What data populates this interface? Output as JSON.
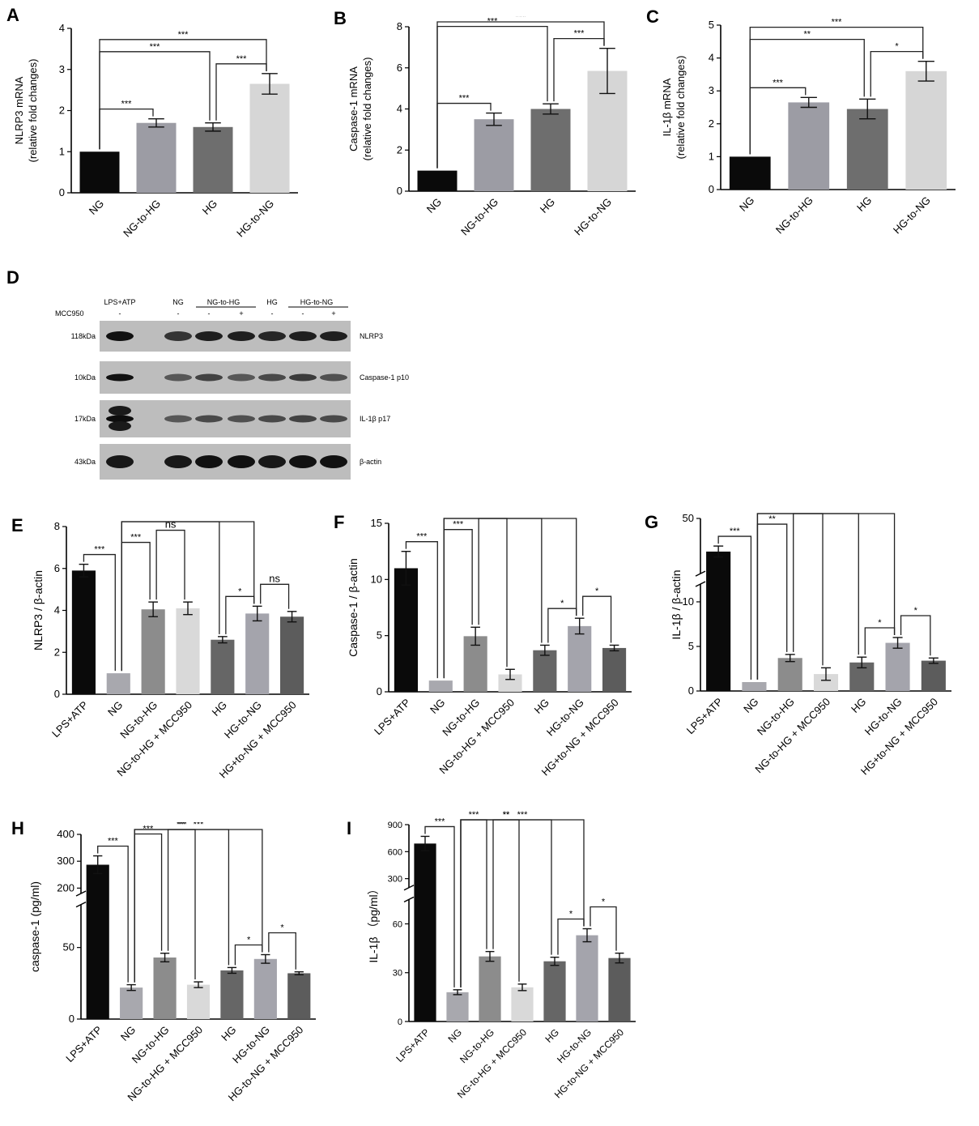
{
  "colors": {
    "NG": "#0a0a0a",
    "NG-to-HG": "#9c9ca4",
    "HG": "#6e6e6e",
    "HG-to-NG": "#d6d6d6",
    "LPS+ATP": "#0a0a0a",
    "NG_small": "#a8a8ae",
    "NG-to-HG_grey": "#8c8c8c",
    "MCC950_light": "#d9d9d9",
    "HG_dark": "#666666",
    "HG-to-NG_mid": "#a4a4ac",
    "HG-to-NG+MCC950": "#5c5c5c"
  },
  "panel_d": {
    "letter": "D",
    "header_treatments": [
      "LPS+ATP",
      "NG",
      "NG-to-HG",
      "HG",
      "HG-to-NG"
    ],
    "mcc950_label": "MCC950",
    "mcc950_signs": [
      "-",
      "-",
      "-",
      "+",
      "-",
      "-",
      "+"
    ],
    "bands": [
      {
        "kda": "118kDa",
        "name": "NLRP3"
      },
      {
        "kda": "10kDa",
        "name": "Caspase-1 p10"
      },
      {
        "kda": "17kDa",
        "name": "IL-1β p17"
      },
      {
        "kda": "43kDa",
        "name": "β-actin"
      }
    ]
  },
  "chart_data": [
    {
      "panel": "A",
      "type": "bar",
      "categories": [
        "NG",
        "NG-to-HG",
        "HG",
        "HG-to-NG"
      ],
      "values": [
        1.0,
        1.7,
        1.6,
        2.65
      ],
      "errors": [
        0,
        0.1,
        0.1,
        0.25
      ],
      "ylabel": "NLRP3 mRNA\n(relative fold changes)",
      "ylim": [
        0,
        4
      ],
      "yticks": [
        0,
        1,
        2,
        3,
        4
      ],
      "colors": [
        "NG",
        "NG-to-HG",
        "HG",
        "HG-to-NG"
      ],
      "significance": [
        {
          "from": 0,
          "to": 1,
          "label": "***"
        },
        {
          "from": 0,
          "to": 2,
          "label": "***"
        },
        {
          "from": 0,
          "to": 3,
          "label": "***"
        },
        {
          "from": 2,
          "to": 3,
          "label": "***"
        }
      ]
    },
    {
      "panel": "B",
      "type": "bar",
      "categories": [
        "NG",
        "NG-to-HG",
        "HG",
        "HG-to-NG"
      ],
      "values": [
        1.0,
        3.5,
        4.0,
        5.85
      ],
      "errors": [
        0,
        0.3,
        0.25,
        1.1
      ],
      "ylabel": "Caspase-1 mRNA\n(relative fold changes)",
      "ylim": [
        0,
        8
      ],
      "yticks": [
        0,
        2,
        4,
        6,
        8
      ],
      "colors": [
        "NG",
        "NG-to-HG",
        "HG",
        "HG-to-NG"
      ],
      "significance": [
        {
          "from": 0,
          "to": 1,
          "label": "***"
        },
        {
          "from": 0,
          "to": 2,
          "label": "***"
        },
        {
          "from": 0,
          "to": 3,
          "label": "***"
        },
        {
          "from": 2,
          "to": 3,
          "label": "***"
        }
      ]
    },
    {
      "panel": "C",
      "type": "bar",
      "categories": [
        "NG",
        "NG-to-HG",
        "HG",
        "HG-to-NG"
      ],
      "values": [
        1.0,
        2.65,
        2.45,
        3.6
      ],
      "errors": [
        0,
        0.15,
        0.3,
        0.3
      ],
      "ylabel": "IL-1β  mRNA\n(relative fold changes)",
      "ylim": [
        0,
        5
      ],
      "yticks": [
        0,
        1,
        2,
        3,
        4,
        5
      ],
      "colors": [
        "NG",
        "NG-to-HG",
        "HG",
        "HG-to-NG"
      ],
      "significance": [
        {
          "from": 0,
          "to": 1,
          "label": "***"
        },
        {
          "from": 0,
          "to": 2,
          "label": "**"
        },
        {
          "from": 0,
          "to": 3,
          "label": "***"
        },
        {
          "from": 2,
          "to": 3,
          "label": "*"
        }
      ]
    },
    {
      "panel": "E",
      "type": "bar",
      "categories": [
        "LPS+ATP",
        "NG",
        "NG-to-HG",
        "NG-to-HG + MCC950",
        "HG",
        "HG-to-NG",
        "HG+to-NG + MCC950"
      ],
      "values": [
        5.9,
        1.0,
        4.05,
        4.1,
        2.6,
        3.85,
        3.7
      ],
      "errors": [
        0.3,
        0,
        0.35,
        0.3,
        0.15,
        0.35,
        0.25
      ],
      "ylabel": "NLRP3 / β-actin",
      "ylim": [
        0,
        8
      ],
      "yticks": [
        0,
        2,
        4,
        6,
        8
      ],
      "colors": [
        "LPS+ATP",
        "NG_small",
        "NG-to-HG_grey",
        "MCC950_light",
        "HG_dark",
        "HG-to-NG_mid",
        "HG-to-NG+MCC950"
      ],
      "significance": [
        {
          "from": 0,
          "to": 1,
          "label": "***"
        },
        {
          "from": 1,
          "to": 5,
          "label": "***"
        },
        {
          "from": 1,
          "to": 4,
          "label": "**"
        },
        {
          "from": 1,
          "to": 2,
          "label": "***"
        },
        {
          "from": 2,
          "to": 3,
          "label": "ns"
        },
        {
          "from": 4,
          "to": 5,
          "label": "*"
        },
        {
          "from": 5,
          "to": 6,
          "label": "ns"
        }
      ]
    },
    {
      "panel": "F",
      "type": "bar",
      "categories": [
        "LPS+ATP",
        "NG",
        "NG-to-HG",
        "NG-to-HG + MCC950",
        "HG",
        "HG-to-NG",
        "HG+to-NG + MCC950"
      ],
      "values": [
        11.0,
        1.0,
        4.95,
        1.55,
        3.7,
        5.85,
        3.9
      ],
      "errors": [
        1.5,
        0,
        0.8,
        0.45,
        0.45,
        0.7,
        0.25
      ],
      "ylabel": "Caspase-1 / β-actin",
      "ylim": [
        0,
        15
      ],
      "yticks": [
        0,
        5,
        10,
        15
      ],
      "colors": [
        "LPS+ATP",
        "NG_small",
        "NG-to-HG_grey",
        "MCC950_light",
        "HG_dark",
        "HG-to-NG_mid",
        "HG-to-NG+MCC950"
      ],
      "significance": [
        {
          "from": 0,
          "to": 1,
          "label": "***"
        },
        {
          "from": 1,
          "to": 5,
          "label": "***"
        },
        {
          "from": 1,
          "to": 4,
          "label": "***"
        },
        {
          "from": 1,
          "to": 2,
          "label": "***"
        },
        {
          "from": 2,
          "to": 3,
          "label": "**"
        },
        {
          "from": 4,
          "to": 5,
          "label": "*"
        },
        {
          "from": 5,
          "to": 6,
          "label": "*"
        }
      ]
    },
    {
      "panel": "G",
      "type": "bar",
      "categories": [
        "LPS+ATP",
        "NG",
        "NG-to-HG",
        "NG-to-HG + MCC950",
        "HG",
        "HG-to-NG",
        "HG+to-NG + MCC950"
      ],
      "values": [
        38,
        1.0,
        3.7,
        1.9,
        3.2,
        5.4,
        3.4
      ],
      "errors": [
        2,
        0,
        0.4,
        0.7,
        0.6,
        0.6,
        0.3
      ],
      "ylabel": "IL-1β / β-actin",
      "ylim": [
        0,
        50
      ],
      "yticks": [
        0,
        5,
        10,
        50
      ],
      "axis_break": [
        12,
        30
      ],
      "colors": [
        "LPS+ATP",
        "NG_small",
        "NG-to-HG_grey",
        "MCC950_light",
        "HG_dark",
        "HG-to-NG_mid",
        "HG-to-NG+MCC950"
      ],
      "significance": [
        {
          "from": 0,
          "to": 1,
          "label": "***"
        },
        {
          "from": 1,
          "to": 5,
          "label": "***"
        },
        {
          "from": 1,
          "to": 4,
          "label": "**"
        },
        {
          "from": 1,
          "to": 2,
          "label": "**"
        },
        {
          "from": 2,
          "to": 3,
          "label": "*"
        },
        {
          "from": 4,
          "to": 5,
          "label": "*"
        },
        {
          "from": 5,
          "to": 6,
          "label": "*"
        }
      ]
    },
    {
      "panel": "H",
      "type": "bar",
      "categories": [
        "LPS+ATP",
        "NG",
        "NG-to-HG",
        "NG-to-HG + MCC950",
        "HG",
        "HG-to-NG",
        "HG-to-NG + MCC950"
      ],
      "values": [
        287,
        22,
        43,
        24,
        34,
        42,
        32
      ],
      "errors": [
        33,
        2,
        3,
        2,
        2,
        3,
        1
      ],
      "ylabel": "caspase-1 (pg/ml)",
      "ylim": [
        0,
        400
      ],
      "yticks": [
        0,
        50,
        200,
        300,
        400
      ],
      "axis_break": [
        80,
        180
      ],
      "colors": [
        "LPS+ATP",
        "NG_small",
        "NG-to-HG_grey",
        "MCC950_light",
        "HG_dark",
        "HG-to-NG_mid",
        "HG-to-NG+MCC950"
      ],
      "significance": [
        {
          "from": 0,
          "to": 1,
          "label": "***"
        },
        {
          "from": 1,
          "to": 5,
          "label": "***"
        },
        {
          "from": 1,
          "to": 4,
          "label": "**"
        },
        {
          "from": 1,
          "to": 2,
          "label": "***"
        },
        {
          "from": 2,
          "to": 3,
          "label": "***"
        },
        {
          "from": 4,
          "to": 5,
          "label": "*"
        },
        {
          "from": 5,
          "to": 6,
          "label": "*"
        }
      ]
    },
    {
      "panel": "I",
      "type": "bar",
      "categories": [
        "LPS+ATP",
        "NG",
        "NG-to-HG",
        "NG-to-HG + MCC950",
        "HG",
        "HG-to-NG",
        "HG-to-NG + MCC950"
      ],
      "values": [
        690,
        18,
        40,
        21,
        37,
        53,
        39
      ],
      "errors": [
        80,
        1.5,
        3,
        2,
        2.5,
        4,
        3
      ],
      "ylabel": "IL-1β （pg/ml）",
      "ylim": [
        0,
        900
      ],
      "yticks": [
        0,
        30,
        60,
        300,
        600,
        900
      ],
      "axis_break": [
        75,
        200
      ],
      "colors": [
        "LPS+ATP",
        "NG_small",
        "NG-to-HG_grey",
        "MCC950_light",
        "HG_dark",
        "HG-to-NG_mid",
        "HG-to-NG+MCC950"
      ],
      "significance": [
        {
          "from": 0,
          "to": 1,
          "label": "***"
        },
        {
          "from": 1,
          "to": 5,
          "label": "***"
        },
        {
          "from": 1,
          "to": 4,
          "label": "**"
        },
        {
          "from": 1,
          "to": 2,
          "label": "***"
        },
        {
          "from": 2,
          "to": 3,
          "label": "**"
        },
        {
          "from": 4,
          "to": 5,
          "label": "*"
        },
        {
          "from": 5,
          "to": 6,
          "label": "*"
        }
      ]
    }
  ]
}
